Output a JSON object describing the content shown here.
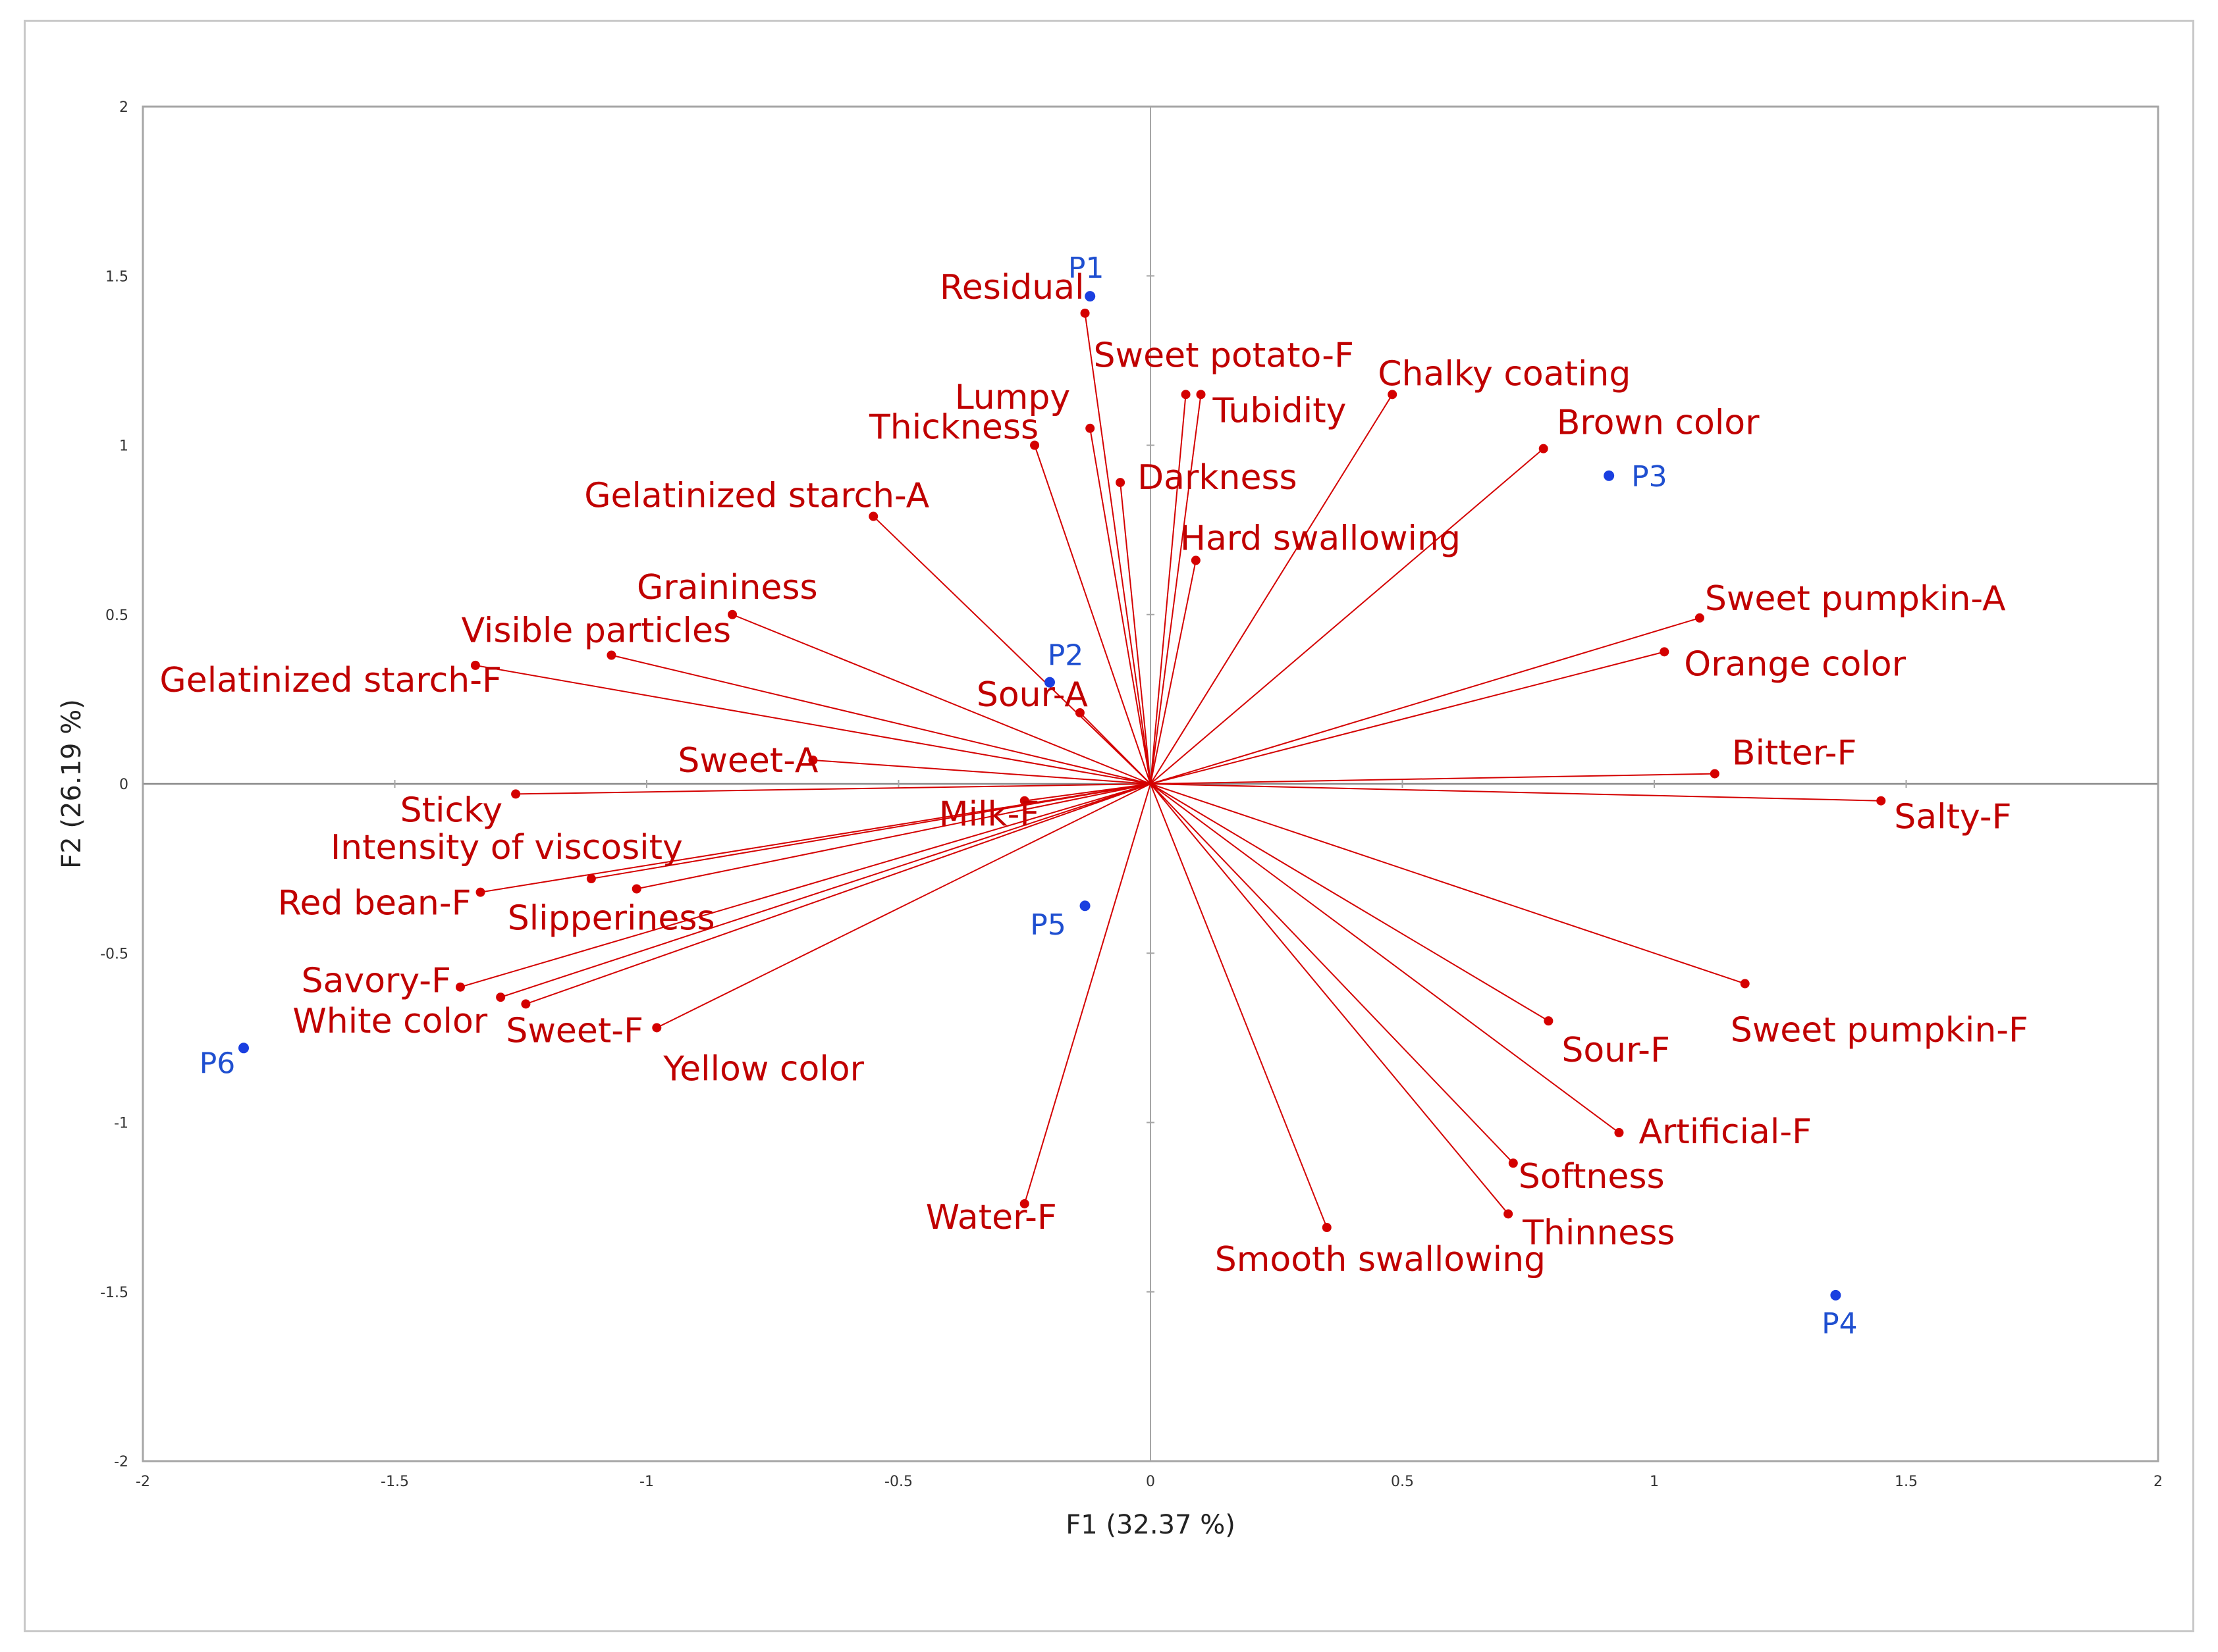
{
  "chart_data": {
    "type": "scatter",
    "subtype": "pca-biplot",
    "xlabel": "F1 (32.37 %)",
    "ylabel": "F2 (26.19 %)",
    "xlim": [
      -2,
      2
    ],
    "ylim": [
      -2,
      2
    ],
    "x_ticks": [
      "-2",
      "-1.5",
      "-1",
      "-0.5",
      "0",
      "0.5",
      "1",
      "1.5",
      "2"
    ],
    "y_ticks": [
      "2",
      "1.5",
      "1",
      "0.5",
      "0",
      "-0.5",
      "-1",
      "-1.5",
      "-2"
    ],
    "grid": false,
    "colors": {
      "variables": "#d40000",
      "observations": "#1a3fe0",
      "axis": "#a6a6a6"
    },
    "variables": [
      {
        "name": "Residual",
        "x": -0.13,
        "y": 1.39
      },
      {
        "name": "Sweet potato-F",
        "x": 0.07,
        "y": 1.15
      },
      {
        "name": "Lumpy",
        "x": -0.12,
        "y": 1.05
      },
      {
        "name": "Tubidity",
        "x": 0.1,
        "y": 1.15
      },
      {
        "name": "Thickness",
        "x": -0.23,
        "y": 1.0
      },
      {
        "name": "Chalky coating",
        "x": 0.48,
        "y": 1.15
      },
      {
        "name": "Brown color",
        "x": 0.78,
        "y": 0.99
      },
      {
        "name": "Darkness",
        "x": -0.06,
        "y": 0.89
      },
      {
        "name": "Gelatinized starch-A",
        "x": -0.55,
        "y": 0.79
      },
      {
        "name": "Hard swallowing",
        "x": 0.09,
        "y": 0.66
      },
      {
        "name": "Graininess",
        "x": -0.83,
        "y": 0.5
      },
      {
        "name": "Visible particles",
        "x": -1.07,
        "y": 0.38
      },
      {
        "name": "Gelatinized starch-F",
        "x": -1.34,
        "y": 0.35
      },
      {
        "name": "Sweet pumpkin-A",
        "x": 1.09,
        "y": 0.49
      },
      {
        "name": "Orange color",
        "x": 1.02,
        "y": 0.39
      },
      {
        "name": "Sour-A",
        "x": -0.14,
        "y": 0.21
      },
      {
        "name": "Sweet-A",
        "x": -0.67,
        "y": 0.07
      },
      {
        "name": "Bitter-F",
        "x": 1.12,
        "y": 0.03
      },
      {
        "name": "Sticky",
        "x": -1.26,
        "y": -0.03
      },
      {
        "name": "Milk-F",
        "x": -0.25,
        "y": -0.05
      },
      {
        "name": "Salty-F",
        "x": 1.45,
        "y": -0.05
      },
      {
        "name": "Intensity of viscosity",
        "x": -1.11,
        "y": -0.28
      },
      {
        "name": "Red bean-F",
        "x": -1.33,
        "y": -0.32
      },
      {
        "name": "Slipperiness",
        "x": -1.02,
        "y": -0.31
      },
      {
        "name": "Savory-F",
        "x": -1.37,
        "y": -0.6
      },
      {
        "name": "White color",
        "x": -1.29,
        "y": -0.63
      },
      {
        "name": "Sweet-F",
        "x": -1.24,
        "y": -0.65
      },
      {
        "name": "Yellow color",
        "x": -0.98,
        "y": -0.72
      },
      {
        "name": "Sweet pumpkin-F",
        "x": 1.18,
        "y": -0.59
      },
      {
        "name": "Sour-F",
        "x": 0.79,
        "y": -0.7
      },
      {
        "name": "Artificial-F",
        "x": 0.93,
        "y": -1.03
      },
      {
        "name": "Softness",
        "x": 0.72,
        "y": -1.12
      },
      {
        "name": "Thinness",
        "x": 0.71,
        "y": -1.27
      },
      {
        "name": "Water-F",
        "x": -0.25,
        "y": -1.24
      },
      {
        "name": "Smooth swallowing",
        "x": 0.35,
        "y": -1.31
      }
    ],
    "observations": [
      {
        "name": "P1",
        "x": -0.12,
        "y": 1.44
      },
      {
        "name": "P2",
        "x": -0.2,
        "y": 0.3
      },
      {
        "name": "P3",
        "x": 0.91,
        "y": 0.91
      },
      {
        "name": "P4",
        "x": 1.36,
        "y": -1.51
      },
      {
        "name": "P5",
        "x": -0.13,
        "y": -0.36
      },
      {
        "name": "P6",
        "x": -1.8,
        "y": -0.78
      }
    ]
  }
}
